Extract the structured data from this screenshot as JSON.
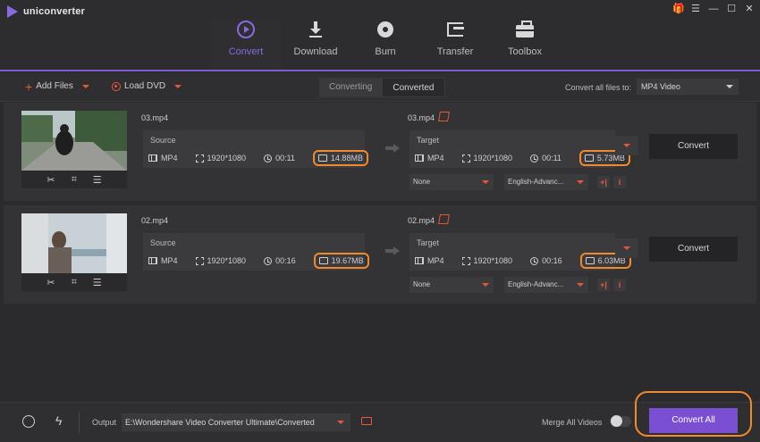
{
  "app": {
    "title": "uniconverter"
  },
  "window_controls": {
    "gift": "gift-icon",
    "menu": "☰",
    "minimize": "—",
    "maximize": "☐",
    "close": "✕"
  },
  "nav": {
    "items": [
      {
        "label": "Convert",
        "icon": "convert-icon",
        "active": true
      },
      {
        "label": "Download",
        "icon": "download-icon",
        "active": false
      },
      {
        "label": "Burn",
        "icon": "burn-icon",
        "active": false
      },
      {
        "label": "Transfer",
        "icon": "transfer-icon",
        "active": false
      },
      {
        "label": "Toolbox",
        "icon": "toolbox-icon",
        "active": false
      }
    ]
  },
  "toolbar": {
    "add_files": "Add Files",
    "load_dvd": "Load DVD",
    "tabs": [
      "Converting",
      "Converted"
    ],
    "convert_all_label": "Convert all files to:",
    "format_value": "MP4 Video"
  },
  "files": [
    {
      "source_name": "03.mp4",
      "source_label": "Source",
      "source": {
        "format": "MP4",
        "resolution": "1920*1080",
        "duration": "00:11",
        "size": "14.88MB"
      },
      "target_name": "03.mp4",
      "target_label": "Target",
      "target": {
        "format": "MP4",
        "resolution": "1920*1080",
        "duration": "00:11",
        "size": "5.73MB"
      },
      "subtitle": "None",
      "audio": "English-Advanc...",
      "convert_label": "Convert"
    },
    {
      "source_name": "02.mp4",
      "source_label": "Source",
      "source": {
        "format": "MP4",
        "resolution": "1920*1080",
        "duration": "00:16",
        "size": "19.67MB"
      },
      "target_name": "02.mp4",
      "target_label": "Target",
      "target": {
        "format": "MP4",
        "resolution": "1920*1080",
        "duration": "00:16",
        "size": "6.03MB"
      },
      "subtitle": "None",
      "audio": "English-Advanc...",
      "convert_label": "Convert"
    }
  ],
  "thumb_tools": {
    "cut": "✂",
    "crop": "⌗",
    "effects": "☰"
  },
  "bottom": {
    "output_label": "Output",
    "output_path": "E:\\Wondershare Video Converter Ultimate\\Converted",
    "merge_label": "Merge All Videos",
    "convert_all": "Convert All",
    "bolt": "ϟ"
  },
  "colors": {
    "accent": "#7b4fd1",
    "highlight": "#f08a2c",
    "icon_red": "#e8573b"
  }
}
